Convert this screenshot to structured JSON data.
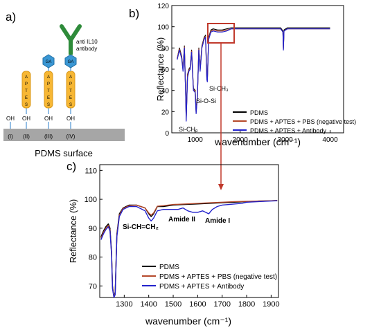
{
  "panels": {
    "a": {
      "label": "a)"
    },
    "b": {
      "label": "b)"
    },
    "c": {
      "label": "c)"
    }
  },
  "schematic": {
    "oh_label": "OH",
    "columns": [
      "(I)",
      "(II)",
      "(III)",
      "(IV)"
    ],
    "aptes_letters": [
      "A",
      "P",
      "T",
      "E",
      "S"
    ],
    "ga_label": "GA",
    "antibody_line1": "anti IL10",
    "antibody_line2": "antibody",
    "surface_label": "PDMS surface",
    "colors": {
      "surface": "#a6a6a6",
      "aptes": "#f7b734",
      "ga": "#3a97d4",
      "antibody": "#2e8b3a",
      "oh": "#6fa8dc"
    }
  },
  "chart_data": [
    {
      "panel": "b",
      "type": "line",
      "xlabel": "wavenumber (cm⁻¹)",
      "ylabel": "Reflectance (%)",
      "xlim": [
        480,
        4300
      ],
      "ylim": [
        0,
        120
      ],
      "xticks": [
        "1000",
        "2000",
        "3000",
        "4000"
      ],
      "yticks": [
        "0",
        "20",
        "40",
        "60",
        "80",
        "100",
        "120"
      ],
      "annotations": [
        "Si-CH₃",
        "Si-O-Si",
        "Si-CH₃"
      ],
      "legend": {
        "placement": "bottom-right"
      },
      "series": [
        {
          "name": "PDMS",
          "color": "#000000",
          "x": [
            600,
            650,
            700,
            730,
            760,
            790,
            800,
            830,
            860,
            890,
            920,
            960,
            1000,
            1020,
            1050,
            1080,
            1110,
            1150,
            1200,
            1230,
            1260,
            1270,
            1300,
            1350,
            1400,
            1500,
            1600,
            1700,
            1800,
            1900,
            2000,
            2300,
            2600,
            2800,
            2900,
            2950,
            2962,
            2975,
            3050,
            3200,
            3500,
            3800,
            4000
          ],
          "y": [
            70,
            80,
            72,
            60,
            82,
            35,
            13,
            55,
            60,
            62,
            78,
            42,
            40,
            20,
            36,
            80,
            60,
            82,
            90,
            92,
            52,
            50,
            90,
            97,
            98,
            97,
            97,
            98,
            99,
            99,
            99,
            99,
            99,
            99,
            99,
            96,
            80,
            97,
            99,
            99,
            99,
            99,
            99
          ]
        },
        {
          "name": "PDMS + APTES + PBS (negative test)",
          "color": "#b5482a",
          "x": [
            600,
            650,
            700,
            730,
            760,
            790,
            800,
            830,
            860,
            890,
            920,
            960,
            1000,
            1020,
            1050,
            1080,
            1110,
            1150,
            1200,
            1230,
            1260,
            1270,
            1300,
            1350,
            1400,
            1500,
            1600,
            1700,
            1800,
            1900,
            2000,
            2300,
            2600,
            2800,
            2900,
            2950,
            2962,
            2975,
            3050,
            3200,
            3500,
            3800,
            4000
          ],
          "y": [
            70,
            79,
            71,
            59,
            81,
            34,
            12,
            54,
            59,
            61,
            77,
            41,
            39,
            19,
            35,
            79,
            59,
            81,
            89,
            91,
            51,
            49,
            89,
            96,
            97,
            96,
            96,
            97,
            98,
            98,
            98,
            98,
            98,
            98,
            98,
            95,
            79,
            96,
            98,
            98,
            98,
            98,
            98
          ]
        },
        {
          "name": "PDMS + APTES + Antibody",
          "color": "#2222cc",
          "x": [
            600,
            650,
            700,
            730,
            760,
            790,
            800,
            830,
            860,
            890,
            920,
            960,
            1000,
            1020,
            1050,
            1080,
            1110,
            1150,
            1200,
            1230,
            1260,
            1270,
            1300,
            1350,
            1400,
            1500,
            1600,
            1700,
            1800,
            1900,
            2000,
            2300,
            2600,
            2800,
            2900,
            2950,
            2962,
            2975,
            3050,
            3200,
            3500,
            3800,
            4000
          ],
          "y": [
            69,
            78,
            70,
            58,
            80,
            33,
            11,
            52,
            58,
            60,
            76,
            40,
            38,
            18,
            34,
            78,
            58,
            80,
            88,
            90,
            50,
            48,
            88,
            95,
            96,
            95,
            95,
            96,
            98,
            98,
            98,
            98,
            98,
            98,
            98,
            95,
            78,
            96,
            98,
            98,
            98,
            98,
            98
          ]
        }
      ]
    },
    {
      "panel": "c",
      "type": "line",
      "xlabel": "wavenumber (cm⁻¹)",
      "ylabel": "Reflectance (%)",
      "xlim": [
        1200,
        1930
      ],
      "ylim": [
        66,
        112
      ],
      "xticks": [
        "1300",
        "1400",
        "1500",
        "1600",
        "1700",
        "1800",
        "1900"
      ],
      "yticks": [
        "70",
        "80",
        "90",
        "100",
        "110"
      ],
      "annotations": [
        "Si-CH=CH₂",
        "Amide II",
        "Amide I"
      ],
      "legend": {
        "placement": "bottom-left"
      },
      "series": [
        {
          "name": "PDMS",
          "color": "#000000",
          "x": [
            1205,
            1215,
            1225,
            1235,
            1242,
            1248,
            1252,
            1258,
            1263,
            1270,
            1280,
            1295,
            1320,
            1350,
            1385,
            1400,
            1410,
            1420,
            1435,
            1460,
            1500,
            1550,
            1600,
            1650,
            1700,
            1750,
            1800,
            1850,
            1900,
            1925
          ],
          "y": [
            87,
            89,
            90.5,
            91.5,
            90,
            82,
            70,
            60,
            68,
            88,
            95,
            97,
            98,
            98,
            97,
            95,
            94,
            95,
            97.5,
            97.5,
            98,
            98.2,
            98.4,
            98.6,
            98.8,
            99,
            99.2,
            99.4,
            99.5,
            99.6
          ]
        },
        {
          "name": "PDMS + APTES + PBS (negative test)",
          "color": "#b5482a",
          "x": [
            1205,
            1215,
            1225,
            1235,
            1242,
            1248,
            1252,
            1258,
            1263,
            1270,
            1280,
            1295,
            1320,
            1350,
            1385,
            1400,
            1410,
            1420,
            1435,
            1460,
            1500,
            1550,
            1600,
            1650,
            1700,
            1750,
            1800,
            1850,
            1900,
            1925
          ],
          "y": [
            86.5,
            88.5,
            90,
            91,
            89.5,
            81.5,
            69.5,
            59.5,
            67.5,
            87.5,
            94.5,
            96.8,
            97.8,
            98,
            97,
            95.3,
            94.5,
            95.3,
            97.6,
            97.8,
            98.2,
            98.4,
            98.6,
            98.8,
            99,
            99.2,
            99.3,
            99.4,
            99.5,
            99.6
          ]
        },
        {
          "name": "PDMS + APTES + Antibody",
          "color": "#2222cc",
          "x": [
            1205,
            1215,
            1225,
            1235,
            1242,
            1248,
            1252,
            1258,
            1263,
            1270,
            1280,
            1295,
            1320,
            1350,
            1385,
            1400,
            1410,
            1420,
            1435,
            1460,
            1500,
            1520,
            1540,
            1560,
            1580,
            1600,
            1620,
            1645,
            1660,
            1680,
            1700,
            1740,
            1780,
            1800,
            1850,
            1900,
            1925
          ],
          "y": [
            86,
            88,
            89.5,
            90.5,
            89,
            81,
            69,
            59,
            67,
            87,
            94,
            96.5,
            97.5,
            97.5,
            96,
            93.5,
            92.5,
            93.5,
            96,
            96.5,
            96.5,
            96.5,
            97,
            96,
            95.5,
            95.5,
            96,
            95,
            96.5,
            97.5,
            98,
            98.3,
            98.6,
            99,
            99.2,
            99.4,
            99.5
          ]
        }
      ]
    }
  ]
}
